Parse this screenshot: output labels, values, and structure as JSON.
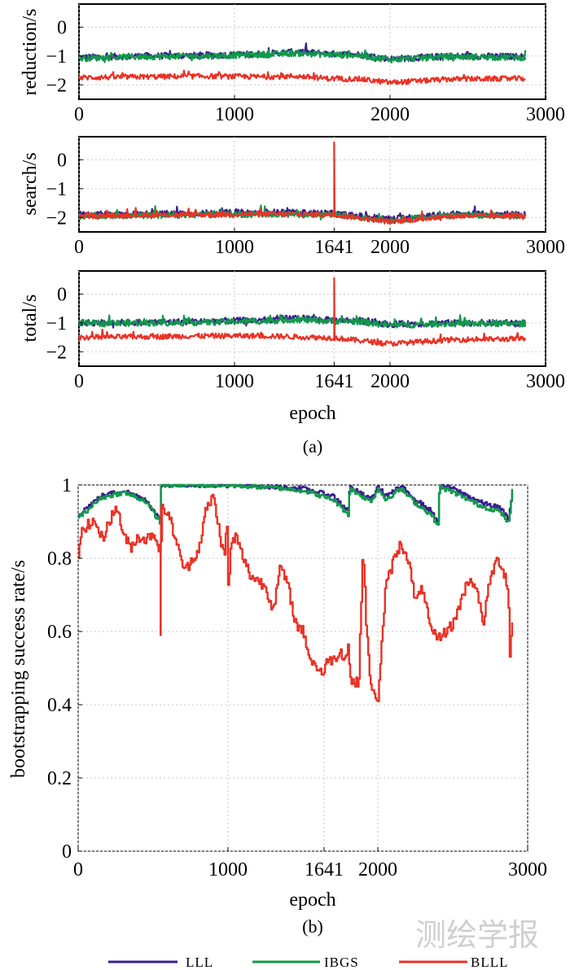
{
  "colors": {
    "LLL": "#3a1f8f",
    "IBGS": "#11994a",
    "BLLL": "#ea3226"
  },
  "chart_data": [
    {
      "type": "line",
      "ylabel": "reduction/s",
      "xlabel": "",
      "xlim": [
        0,
        3000
      ],
      "ylim": [
        -2.5,
        0.8
      ],
      "xticks": [
        0,
        1000,
        2000,
        3000
      ],
      "xtick_labels": [
        "0",
        "1000",
        "2000",
        "3000"
      ],
      "yticks": [
        0,
        -1,
        -2
      ],
      "ytick_labels": [
        "0",
        "−1",
        "−2"
      ],
      "series": [
        {
          "name": "LLL",
          "x": [
            0,
            400,
            800,
            1200,
            1400,
            1600,
            1800,
            2000,
            2400,
            2870
          ],
          "values": [
            -1.05,
            -1.0,
            -0.98,
            -0.92,
            -0.85,
            -0.92,
            -0.95,
            -1.1,
            -1.0,
            -1.02
          ]
        },
        {
          "name": "IBGS",
          "x": [
            0,
            400,
            800,
            1200,
            1400,
            1600,
            1800,
            2000,
            2400,
            2870
          ],
          "values": [
            -1.08,
            -1.02,
            -1.0,
            -0.95,
            -0.9,
            -0.95,
            -0.98,
            -1.12,
            -1.02,
            -1.05
          ]
        },
        {
          "name": "BLLL",
          "x": [
            0,
            400,
            800,
            1200,
            1400,
            1600,
            1800,
            2000,
            2400,
            2870
          ],
          "values": [
            -1.75,
            -1.72,
            -1.7,
            -1.72,
            -1.7,
            -1.78,
            -1.8,
            -1.92,
            -1.8,
            -1.78
          ]
        }
      ]
    },
    {
      "type": "line",
      "ylabel": "search/s",
      "xlabel": "",
      "xlim": [
        0,
        3000
      ],
      "ylim": [
        -2.5,
        0.8
      ],
      "xticks": [
        0,
        1000,
        1641,
        2000,
        3000
      ],
      "xtick_labels": [
        "0",
        "1000",
        "1641",
        "2000",
        "3000"
      ],
      "yticks": [
        0,
        -1,
        -2
      ],
      "ytick_labels": [
        "0",
        "−1",
        "−2"
      ],
      "series": [
        {
          "name": "LLL",
          "x": [
            0,
            400,
            800,
            1200,
            1600,
            2000,
            2400,
            2870
          ],
          "values": [
            -1.9,
            -1.88,
            -1.85,
            -1.82,
            -1.85,
            -2.05,
            -1.88,
            -1.9
          ]
        },
        {
          "name": "IBGS",
          "x": [
            0,
            400,
            800,
            1200,
            1600,
            2000,
            2400,
            2870
          ],
          "values": [
            -1.95,
            -1.93,
            -1.9,
            -1.88,
            -1.9,
            -2.1,
            -1.92,
            -1.95
          ]
        },
        {
          "name": "BLLL",
          "x": [
            0,
            400,
            800,
            1200,
            1640,
            1641,
            1642,
            2000,
            2400,
            2870
          ],
          "values": [
            -1.95,
            -1.92,
            -1.9,
            -1.88,
            -1.9,
            0.6,
            -1.9,
            -2.15,
            -1.95,
            -1.95
          ]
        }
      ]
    },
    {
      "type": "line",
      "ylabel": "total/s",
      "xlabel": "epoch",
      "xlim": [
        0,
        3000
      ],
      "ylim": [
        -2.5,
        0.8
      ],
      "xticks": [
        0,
        1000,
        1641,
        2000,
        3000
      ],
      "xtick_labels": [
        "0",
        "1000",
        "1641",
        "2000",
        "3000"
      ],
      "yticks": [
        0,
        -1,
        -2
      ],
      "ytick_labels": [
        "0",
        "−1",
        "−2"
      ],
      "caption": "(a)",
      "series": [
        {
          "name": "LLL",
          "x": [
            0,
            400,
            800,
            1200,
            1400,
            1600,
            1800,
            2000,
            2400,
            2870
          ],
          "values": [
            -1.0,
            -0.98,
            -0.95,
            -0.9,
            -0.82,
            -0.9,
            -0.92,
            -1.05,
            -1.0,
            -1.0
          ]
        },
        {
          "name": "IBGS",
          "x": [
            0,
            400,
            800,
            1200,
            1400,
            1600,
            1800,
            2000,
            2400,
            2870
          ],
          "values": [
            -1.02,
            -1.0,
            -0.98,
            -0.93,
            -0.88,
            -0.93,
            -0.95,
            -1.08,
            -1.02,
            -1.03
          ]
        },
        {
          "name": "BLLL",
          "x": [
            0,
            400,
            800,
            1200,
            1640,
            1641,
            1642,
            2000,
            2400,
            2870
          ],
          "values": [
            -1.5,
            -1.48,
            -1.45,
            -1.45,
            -1.52,
            0.55,
            -1.52,
            -1.72,
            -1.58,
            -1.55
          ]
        }
      ]
    },
    {
      "type": "line",
      "ylabel": "bootstrapping success rate/s",
      "xlabel": "epoch",
      "xlim": [
        0,
        3000
      ],
      "ylim": [
        0,
        1
      ],
      "xticks": [
        0,
        1000,
        1641,
        2000,
        3000
      ],
      "xtick_labels": [
        "0",
        "1000",
        "1641",
        "2000",
        "3000"
      ],
      "yticks": [
        0,
        0.2,
        0.4,
        0.6,
        0.8,
        1
      ],
      "ytick_labels": [
        "0",
        "0.2",
        "0.4",
        "0.6",
        "0.8",
        "1"
      ],
      "caption": "(b)",
      "series": [
        {
          "name": "LLL",
          "x": [
            0,
            150,
            300,
            450,
            549,
            551,
            700,
            900,
            1100,
            1300,
            1500,
            1700,
            1800,
            1810,
            1950,
            2000,
            2050,
            2150,
            2200,
            2250,
            2350,
            2400,
            2410,
            2500,
            2600,
            2700,
            2800,
            2850,
            2870,
            2900
          ],
          "values": [
            0.92,
            0.97,
            0.985,
            0.96,
            0.9,
            1.0,
            1.0,
            1.0,
            0.998,
            0.995,
            0.99,
            0.97,
            0.93,
            0.995,
            0.96,
            0.995,
            0.97,
            0.995,
            0.98,
            0.96,
            0.93,
            0.9,
            1.0,
            0.99,
            0.97,
            0.95,
            0.94,
            0.92,
            0.9,
            1.0
          ]
        },
        {
          "name": "IBGS",
          "x": [
            0,
            150,
            300,
            450,
            549,
            551,
            700,
            900,
            1100,
            1300,
            1500,
            1700,
            1800,
            1810,
            1950,
            2000,
            2050,
            2150,
            2200,
            2250,
            2350,
            2400,
            2410,
            2500,
            2600,
            2700,
            2800,
            2850,
            2870,
            2900
          ],
          "values": [
            0.91,
            0.965,
            0.98,
            0.955,
            0.895,
            1.0,
            1.0,
            1.0,
            0.997,
            0.993,
            0.985,
            0.96,
            0.92,
            0.99,
            0.955,
            0.99,
            0.96,
            0.99,
            0.97,
            0.95,
            0.92,
            0.89,
            0.995,
            0.98,
            0.96,
            0.94,
            0.93,
            0.91,
            0.89,
            1.0
          ]
        },
        {
          "name": "BLLL",
          "x": [
            0,
            20,
            60,
            110,
            160,
            200,
            260,
            300,
            350,
            400,
            450,
            500,
            549,
            550,
            551,
            560,
            600,
            650,
            680,
            700,
            720,
            760,
            800,
            850,
            900,
            950,
            975,
            990,
            1000,
            1020,
            1050,
            1100,
            1150,
            1200,
            1250,
            1300,
            1350,
            1400,
            1450,
            1500,
            1550,
            1600,
            1641,
            1660,
            1700,
            1750,
            1780,
            1800,
            1820,
            1870,
            1900,
            1920,
            1950,
            1960,
            2000,
            2050,
            2100,
            2150,
            2200,
            2250,
            2300,
            2350,
            2400,
            2450,
            2500,
            2550,
            2600,
            2650,
            2700,
            2750,
            2800,
            2850,
            2870,
            2880,
            2900
          ],
          "values": [
            0.79,
            0.88,
            0.89,
            0.9,
            0.85,
            0.9,
            0.94,
            0.86,
            0.83,
            0.86,
            0.85,
            0.87,
            0.82,
            0.59,
            0.82,
            0.94,
            0.92,
            0.85,
            0.8,
            0.78,
            0.77,
            0.8,
            0.82,
            0.93,
            0.97,
            0.85,
            0.8,
            0.92,
            0.72,
            0.84,
            0.86,
            0.8,
            0.75,
            0.74,
            0.72,
            0.66,
            0.78,
            0.72,
            0.62,
            0.6,
            0.52,
            0.5,
            0.48,
            0.53,
            0.52,
            0.55,
            0.52,
            0.56,
            0.46,
            0.46,
            0.84,
            0.62,
            0.46,
            0.43,
            0.42,
            0.72,
            0.79,
            0.84,
            0.8,
            0.68,
            0.72,
            0.6,
            0.58,
            0.6,
            0.62,
            0.68,
            0.74,
            0.73,
            0.62,
            0.75,
            0.8,
            0.75,
            0.7,
            0.54,
            0.64
          ]
        }
      ]
    }
  ],
  "legend": {
    "items": [
      "LLL",
      "IBGS",
      "BLLL"
    ],
    "position": "bottom-center"
  },
  "watermark": "测绘学报"
}
